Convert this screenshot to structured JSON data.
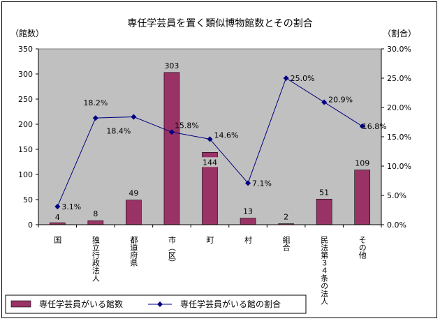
{
  "chart_data": {
    "type": "bar",
    "title": "専任学芸員を置く類似博物館数とその割合",
    "ylabel_left": "（館数）",
    "ylabel_right": "（割合）",
    "categories": [
      "国",
      "独立行政法人",
      "都道府県",
      "市（区）",
      "町",
      "村",
      "組合",
      "民法第３４条の法人",
      "その他"
    ],
    "left_axis": {
      "ylim": [
        0,
        350
      ],
      "ticks": [
        "0",
        "50",
        "100",
        "150",
        "200",
        "250",
        "300",
        "350"
      ]
    },
    "right_axis": {
      "ylim": [
        0,
        30
      ],
      "ticks": [
        "0.0%",
        "5.0%",
        "10.0%",
        "15.0%",
        "20.0%",
        "25.0%",
        "30.0%"
      ]
    },
    "series": [
      {
        "name": "専任学芸員がいる館数",
        "type": "bar",
        "axis": "left",
        "color": "#993366",
        "values": [
          4,
          8,
          49,
          303,
          144,
          13,
          2,
          51,
          109
        ],
        "labels": [
          "4",
          "8",
          "49",
          "303",
          "144",
          "13",
          "2",
          "51",
          "109"
        ]
      },
      {
        "name": "専任学芸員がいる館の割合",
        "type": "line",
        "axis": "right",
        "color": "#000080",
        "values": [
          3.1,
          18.2,
          18.4,
          15.8,
          14.6,
          7.1,
          25.0,
          20.9,
          16.8
        ],
        "labels": [
          "3.1%",
          "18.2%",
          "18.4%",
          "15.8%",
          "14.6%",
          "7.1%",
          "25.0%",
          "20.9%",
          "16.8%"
        ]
      }
    ],
    "grid": false,
    "plot_background": "#c0c0c0",
    "legend_position": "bottom"
  }
}
